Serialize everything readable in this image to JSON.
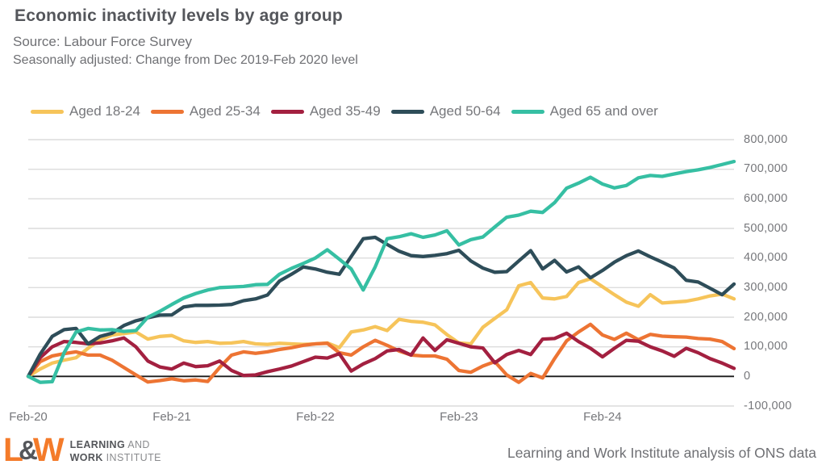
{
  "header": {
    "title": "Economic inactivity levels by age group",
    "source": "Source: Labour Force Survey",
    "subtitle": "Seasonally adjusted: Change from Dec 2019-Feb 2020 level"
  },
  "chart_data": {
    "type": "line",
    "title": "Economic inactivity levels by age group",
    "x_unit": "months, monthly observations starting Feb-2020",
    "x_tick_labels": [
      "Feb-20",
      "Feb-21",
      "Feb-22",
      "Feb-23",
      "Feb-24"
    ],
    "x_tick_month_indices": [
      0,
      12,
      24,
      36,
      48
    ],
    "y_tick_values": [
      800000,
      700000,
      600000,
      500000,
      400000,
      300000,
      200000,
      100000,
      0,
      -100000
    ],
    "y_tick_labels": [
      "800,000",
      "700,000",
      "600,000",
      "500,000",
      "400,000",
      "300,000",
      "200,000",
      "100,000",
      "0",
      "-100,000"
    ],
    "ylim": [
      -100000,
      800000
    ],
    "grid": "horizontal",
    "legend_position": "top",
    "zero_axis_color": "#1A1A1A",
    "grid_color": "#DCDCDC",
    "series": [
      {
        "name": "Aged 18-24",
        "color": "#F6C45A",
        "values": [
          0,
          25000,
          45000,
          55000,
          63000,
          95000,
          124000,
          140000,
          145000,
          150000,
          126000,
          135000,
          138000,
          120000,
          115000,
          118000,
          112000,
          113000,
          118000,
          110000,
          108000,
          112000,
          110000,
          108000,
          110000,
          113000,
          97000,
          150000,
          157000,
          168000,
          155000,
          193000,
          186000,
          183000,
          174000,
          141000,
          113000,
          110000,
          166000,
          196000,
          225000,
          306000,
          317000,
          265000,
          262000,
          270000,
          317000,
          330000,
          303000,
          276000,
          251000,
          237000,
          276000,
          248000,
          251000,
          254000,
          262000,
          272000,
          278000,
          262000
        ]
      },
      {
        "name": "Aged 25-34",
        "color": "#ED7433",
        "values": [
          0,
          50000,
          69000,
          77000,
          83000,
          72000,
          72000,
          55000,
          30000,
          5000,
          -19000,
          -14000,
          -8000,
          -15000,
          -12000,
          -17000,
          30000,
          72000,
          83000,
          78000,
          83000,
          91000,
          97000,
          105000,
          110000,
          112000,
          80000,
          72000,
          100000,
          122000,
          105000,
          86000,
          72000,
          69000,
          69000,
          58000,
          20000,
          14000,
          35000,
          50000,
          5000,
          -20000,
          10000,
          -5000,
          60000,
          120000,
          150000,
          176000,
          140000,
          125000,
          146000,
          124000,
          142000,
          136000,
          134000,
          133000,
          128000,
          126000,
          118000,
          94000
        ]
      },
      {
        "name": "Aged 35-49",
        "color": "#A32040",
        "values": [
          0,
          63000,
          100000,
          118000,
          115000,
          110000,
          113000,
          120000,
          130000,
          100000,
          52000,
          32000,
          25000,
          45000,
          33000,
          36000,
          52000,
          20000,
          3000,
          5000,
          16000,
          25000,
          35000,
          50000,
          65000,
          62000,
          77000,
          18000,
          42000,
          60000,
          86000,
          91000,
          72000,
          130000,
          88000,
          124000,
          112000,
          100000,
          96000,
          46000,
          74000,
          88000,
          74000,
          126000,
          128000,
          146000,
          118000,
          95000,
          66000,
          95000,
          122000,
          119000,
          100000,
          86000,
          68000,
          95000,
          80000,
          60000,
          45000,
          27000
        ]
      },
      {
        "name": "Aged 50-64",
        "color": "#2E4D59",
        "values": [
          0,
          75000,
          135000,
          158000,
          162000,
          110000,
          135000,
          146000,
          172000,
          188000,
          198000,
          207000,
          208000,
          235000,
          240000,
          240000,
          241000,
          243000,
          256000,
          262000,
          275000,
          322000,
          345000,
          370000,
          363000,
          352000,
          345000,
          405000,
          465000,
          470000,
          446000,
          423000,
          408000,
          405000,
          409000,
          415000,
          426000,
          390000,
          366000,
          352000,
          354000,
          390000,
          425000,
          363000,
          392000,
          353000,
          370000,
          333000,
          358000,
          386000,
          408000,
          424000,
          404000,
          386000,
          366000,
          325000,
          319000,
          298000,
          276000,
          312000
        ]
      },
      {
        "name": "Aged 65 and over",
        "color": "#36BFA3",
        "values": [
          0,
          -20000,
          -18000,
          80000,
          150000,
          162000,
          157000,
          158000,
          152000,
          155000,
          200000,
          220000,
          243000,
          265000,
          280000,
          292000,
          300000,
          302000,
          304000,
          310000,
          311000,
          345000,
          365000,
          382000,
          400000,
          428000,
          396000,
          363000,
          292000,
          370000,
          465000,
          472000,
          482000,
          470000,
          478000,
          492000,
          444000,
          462000,
          471000,
          505000,
          538000,
          545000,
          558000,
          554000,
          587000,
          636000,
          653000,
          673000,
          650000,
          637000,
          645000,
          671000,
          679000,
          676000,
          684000,
          692000,
          698000,
          706000,
          716000,
          726000
        ]
      }
    ]
  },
  "footer": {
    "logo": {
      "mark_l": "L",
      "mark_amp": "&",
      "mark_w": "W",
      "line1_bold": "LEARNING",
      "line1_rest": "AND",
      "line2_bold": "WORK",
      "line2_rest": "INSTITUTE"
    },
    "attribution": "Learning and Work Institute analysis of ONS data"
  }
}
